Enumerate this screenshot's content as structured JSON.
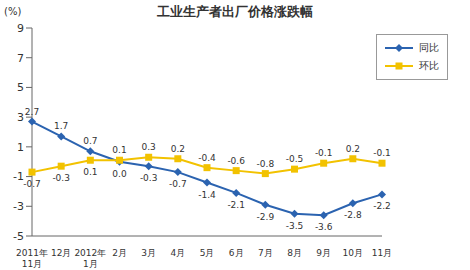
{
  "chart_data": {
    "type": "line",
    "title": "工业生产者出厂价格涨跌幅",
    "y_label": "(%)",
    "categories": [
      "2011年11月",
      "12月",
      "2012年1月",
      "2月",
      "3月",
      "4月",
      "5月",
      "6月",
      "7月",
      "8月",
      "9月",
      "10月",
      "11月"
    ],
    "series": [
      {
        "name": "同比",
        "color": "#2b63b0",
        "marker": "diamond",
        "values": [
          2.7,
          1.7,
          0.7,
          0.0,
          -0.3,
          -0.7,
          -1.4,
          -2.1,
          -2.9,
          -3.5,
          -3.6,
          -2.8,
          -2.2
        ],
        "value_labels": [
          "2.7",
          "1.7",
          "0.7",
          "0.0",
          "-0.3",
          "-0.7",
          "-1.4",
          "-2.1",
          "-2.9",
          "-3.5",
          "-3.6",
          "-2.8",
          "-2.2"
        ]
      },
      {
        "name": "环比",
        "color": "#f2c200",
        "marker": "square",
        "values": [
          -0.7,
          -0.3,
          0.1,
          0.1,
          0.3,
          0.2,
          -0.4,
          -0.6,
          -0.8,
          -0.5,
          -0.1,
          0.2,
          -0.1
        ],
        "value_labels": [
          "-0.7",
          "-0.3",
          "0.1",
          "0.1",
          "0.3",
          "0.2",
          "-0.4",
          "-0.6",
          "-0.8",
          "-0.5",
          "-0.1",
          "0.2",
          "-0.1"
        ]
      }
    ],
    "ylim": [
      -5,
      9
    ],
    "yticks": [
      -5,
      -3,
      -1,
      1,
      3,
      5,
      7,
      9
    ],
    "grid": false,
    "legend": "upper right",
    "data_labels": true
  }
}
